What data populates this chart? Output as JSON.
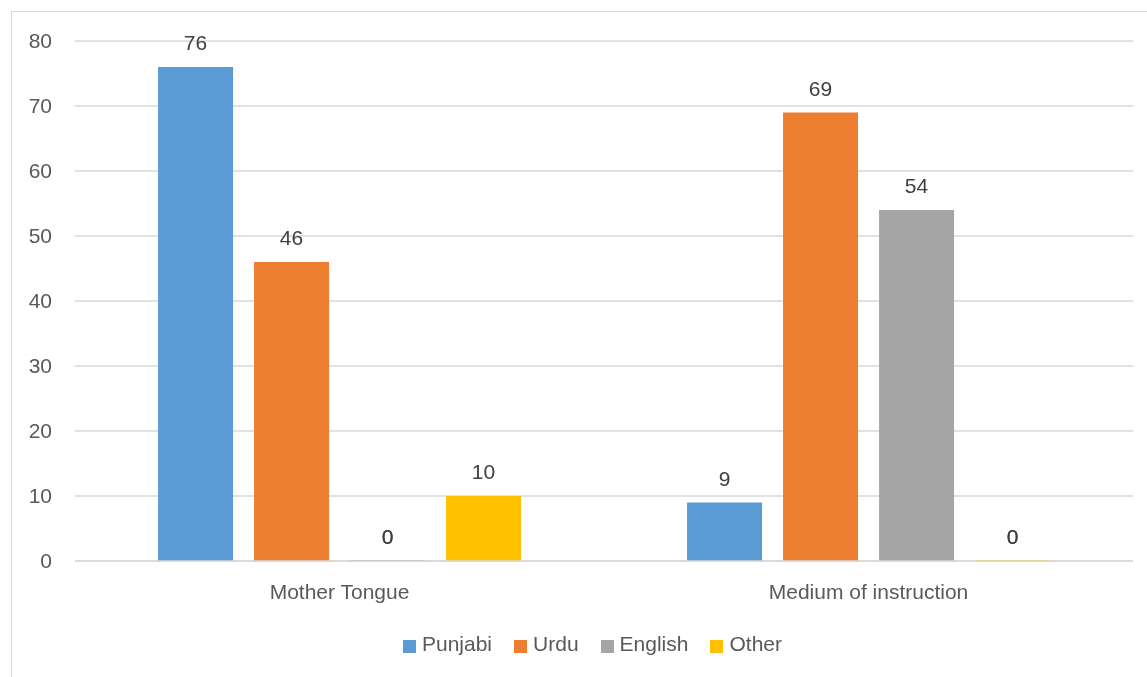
{
  "chart_data": {
    "type": "bar",
    "categories": [
      "Mother Tongue",
      "Medium of instruction"
    ],
    "series": [
      {
        "name": "Punjabi",
        "color": "#5b9bd5",
        "values": [
          76,
          9
        ]
      },
      {
        "name": "Urdu",
        "color": "#ed7d31",
        "values": [
          46,
          69
        ]
      },
      {
        "name": "English",
        "color": "#a5a5a5",
        "values": [
          0,
          54
        ]
      },
      {
        "name": "Other",
        "color": "#ffc000",
        "values": [
          10,
          0
        ]
      }
    ],
    "ylim": [
      0,
      80
    ],
    "yticks": [
      0,
      10,
      20,
      30,
      40,
      50,
      60,
      70,
      80
    ],
    "grid": "y",
    "legend": "bottom",
    "data_labels": true
  }
}
